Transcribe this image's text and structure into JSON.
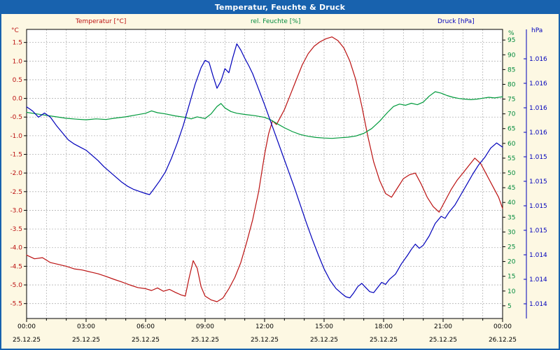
{
  "window": {
    "title": "Temperatur, Feuchte & Druck"
  },
  "legend": {
    "temperature": "Temperatur [°C]",
    "humidity": "rel. Feuchte [%]",
    "pressure": "Druck [hPa]"
  },
  "units": {
    "left": "°C",
    "humidity": "%",
    "pressure": "hPa"
  },
  "colors": {
    "background": "#fdf8e3",
    "titlebar": "#1862ae",
    "plot_background": "#ffffff",
    "grid": "#b4b4b4",
    "temperature": "#bb1111",
    "humidity": "#009a3c",
    "pressure": "#0000bb"
  },
  "chart_data": {
    "type": "line",
    "title": "Temperatur, Feuchte & Druck",
    "grid": true,
    "x_axis": {
      "unit": "time",
      "range_hours": [
        0,
        24
      ],
      "major_tick_hours": 3,
      "minor_tick_hours": 1,
      "tick_labels": [
        {
          "time": "00:00",
          "date": "25.12.25"
        },
        {
          "time": "03:00",
          "date": "25.12.25"
        },
        {
          "time": "06:00",
          "date": "25.12.25"
        },
        {
          "time": "09:00",
          "date": "25.12.25"
        },
        {
          "time": "12:00",
          "date": "25.12.25"
        },
        {
          "time": "15:00",
          "date": "25.12.25"
        },
        {
          "time": "18:00",
          "date": "25.12.25"
        },
        {
          "time": "21:00",
          "date": "25.12.25"
        },
        {
          "time": "00:00",
          "date": "26.12.25"
        }
      ]
    },
    "temp_axis": {
      "unit": "°C",
      "color": "#bb1111",
      "min": -5.9,
      "max": 1.85,
      "tick_values": [
        1.5,
        1.0,
        0.5,
        0.0,
        -0.5,
        -1.0,
        -1.5,
        -2.0,
        -2.5,
        -3.0,
        -3.5,
        -4.0,
        -4.5,
        -5.0,
        -5.5
      ]
    },
    "humidity_axis": {
      "unit": "%",
      "color": "#008a3c",
      "min": 0.7,
      "max": 98.6,
      "tick_values": [
        95,
        90,
        85,
        80,
        75,
        70,
        65,
        60,
        55,
        50,
        45,
        40,
        35,
        30,
        25,
        20,
        15,
        10,
        5
      ]
    },
    "pressure_axis": {
      "unit": "hPa",
      "color": "#0000bb",
      "min": 1013.75,
      "max": 1016.55,
      "labels": [
        "1.016",
        "1.016",
        "1.016",
        "1.016",
        "1.015",
        "1.015",
        "1.015",
        "1.015",
        "1.014",
        "1.014",
        "1.014"
      ]
    },
    "series": [
      {
        "name": "Temperatur [°C]",
        "axis": "temp",
        "color": "#bb1111",
        "points": [
          [
            0,
            -4.2
          ],
          [
            0.4,
            -4.3
          ],
          [
            0.8,
            -4.27
          ],
          [
            1.2,
            -4.4
          ],
          [
            1.6,
            -4.45
          ],
          [
            2,
            -4.5
          ],
          [
            2.4,
            -4.57
          ],
          [
            2.8,
            -4.6
          ],
          [
            3.2,
            -4.65
          ],
          [
            3.6,
            -4.7
          ],
          [
            4,
            -4.77
          ],
          [
            4.4,
            -4.85
          ],
          [
            4.8,
            -4.92
          ],
          [
            5.2,
            -5.0
          ],
          [
            5.6,
            -5.07
          ],
          [
            6,
            -5.1
          ],
          [
            6.3,
            -5.15
          ],
          [
            6.6,
            -5.08
          ],
          [
            6.9,
            -5.17
          ],
          [
            7.2,
            -5.12
          ],
          [
            7.5,
            -5.2
          ],
          [
            7.8,
            -5.27
          ],
          [
            8,
            -5.3
          ],
          [
            8.2,
            -4.8
          ],
          [
            8.4,
            -4.35
          ],
          [
            8.6,
            -4.55
          ],
          [
            8.8,
            -5.05
          ],
          [
            9,
            -5.3
          ],
          [
            9.3,
            -5.4
          ],
          [
            9.6,
            -5.45
          ],
          [
            9.9,
            -5.35
          ],
          [
            10.2,
            -5.1
          ],
          [
            10.5,
            -4.8
          ],
          [
            10.8,
            -4.4
          ],
          [
            11.1,
            -3.85
          ],
          [
            11.4,
            -3.25
          ],
          [
            11.7,
            -2.5
          ],
          [
            12,
            -1.5
          ],
          [
            12.2,
            -0.95
          ],
          [
            12.4,
            -0.6
          ],
          [
            12.6,
            -0.7
          ],
          [
            12.8,
            -0.5
          ],
          [
            13,
            -0.3
          ],
          [
            13.3,
            0.1
          ],
          [
            13.6,
            0.5
          ],
          [
            13.9,
            0.9
          ],
          [
            14.2,
            1.2
          ],
          [
            14.5,
            1.4
          ],
          [
            14.8,
            1.52
          ],
          [
            15.1,
            1.6
          ],
          [
            15.4,
            1.65
          ],
          [
            15.7,
            1.55
          ],
          [
            16,
            1.35
          ],
          [
            16.3,
            1.0
          ],
          [
            16.6,
            0.5
          ],
          [
            16.9,
            -0.2
          ],
          [
            17.2,
            -1.0
          ],
          [
            17.5,
            -1.7
          ],
          [
            17.8,
            -2.2
          ],
          [
            18.1,
            -2.55
          ],
          [
            18.4,
            -2.65
          ],
          [
            18.7,
            -2.4
          ],
          [
            19,
            -2.15
          ],
          [
            19.3,
            -2.05
          ],
          [
            19.6,
            -2.0
          ],
          [
            19.9,
            -2.3
          ],
          [
            20.2,
            -2.65
          ],
          [
            20.5,
            -2.9
          ],
          [
            20.8,
            -3.05
          ],
          [
            21.1,
            -2.75
          ],
          [
            21.4,
            -2.45
          ],
          [
            21.7,
            -2.2
          ],
          [
            22,
            -2.0
          ],
          [
            22.3,
            -1.8
          ],
          [
            22.6,
            -1.6
          ],
          [
            22.9,
            -1.75
          ],
          [
            23.2,
            -2.05
          ],
          [
            23.5,
            -2.35
          ],
          [
            23.8,
            -2.65
          ],
          [
            24,
            -2.95
          ]
        ]
      },
      {
        "name": "rel. Feuchte [%]",
        "axis": "humidity",
        "color": "#009a3c",
        "points": [
          [
            0,
            70.5
          ],
          [
            0.5,
            70
          ],
          [
            1,
            69.5
          ],
          [
            1.5,
            69
          ],
          [
            2,
            68.5
          ],
          [
            2.5,
            68.2
          ],
          [
            3,
            68
          ],
          [
            3.5,
            68.3
          ],
          [
            4,
            68.1
          ],
          [
            4.5,
            68.6
          ],
          [
            5,
            69
          ],
          [
            5.5,
            69.6
          ],
          [
            6,
            70.2
          ],
          [
            6.3,
            71
          ],
          [
            6.6,
            70.4
          ],
          [
            7,
            70
          ],
          [
            7.5,
            69.3
          ],
          [
            8,
            68.8
          ],
          [
            8.3,
            68.3
          ],
          [
            8.6,
            69
          ],
          [
            9,
            68.4
          ],
          [
            9.3,
            70
          ],
          [
            9.6,
            72.5
          ],
          [
            9.8,
            73.5
          ],
          [
            10,
            72
          ],
          [
            10.3,
            70.8
          ],
          [
            10.6,
            70.2
          ],
          [
            11,
            69.8
          ],
          [
            11.5,
            69.4
          ],
          [
            12,
            68.8
          ],
          [
            12.3,
            68
          ],
          [
            12.6,
            66.8
          ],
          [
            13,
            65.3
          ],
          [
            13.4,
            64
          ],
          [
            13.8,
            63
          ],
          [
            14.2,
            62.4
          ],
          [
            14.6,
            62
          ],
          [
            15,
            61.8
          ],
          [
            15.4,
            61.7
          ],
          [
            15.8,
            61.9
          ],
          [
            16.2,
            62.1
          ],
          [
            16.6,
            62.5
          ],
          [
            17,
            63.4
          ],
          [
            17.4,
            65
          ],
          [
            17.8,
            67.5
          ],
          [
            18.2,
            70.5
          ],
          [
            18.5,
            72.5
          ],
          [
            18.8,
            73.3
          ],
          [
            19.1,
            72.9
          ],
          [
            19.4,
            73.6
          ],
          [
            19.7,
            73.1
          ],
          [
            20,
            74
          ],
          [
            20.3,
            76
          ],
          [
            20.6,
            77.5
          ],
          [
            20.9,
            77
          ],
          [
            21.2,
            76.2
          ],
          [
            21.5,
            75.6
          ],
          [
            21.8,
            75.2
          ],
          [
            22.1,
            75
          ],
          [
            22.4,
            74.8
          ],
          [
            22.7,
            75
          ],
          [
            23,
            75.3
          ],
          [
            23.3,
            75.6
          ],
          [
            23.6,
            75.4
          ],
          [
            24,
            75.8
          ]
        ]
      },
      {
        "name": "Druck [hPa]",
        "axis": "pressure",
        "color": "#0000bb",
        "points": [
          [
            0,
            1015.8
          ],
          [
            0.3,
            1015.76
          ],
          [
            0.6,
            1015.7
          ],
          [
            0.9,
            1015.74
          ],
          [
            1.2,
            1015.7
          ],
          [
            1.5,
            1015.62
          ],
          [
            1.8,
            1015.55
          ],
          [
            2.1,
            1015.48
          ],
          [
            2.4,
            1015.44
          ],
          [
            2.7,
            1015.41
          ],
          [
            3,
            1015.38
          ],
          [
            3.3,
            1015.33
          ],
          [
            3.6,
            1015.28
          ],
          [
            3.9,
            1015.22
          ],
          [
            4.2,
            1015.17
          ],
          [
            4.5,
            1015.12
          ],
          [
            4.8,
            1015.07
          ],
          [
            5.1,
            1015.03
          ],
          [
            5.4,
            1015.0
          ],
          [
            5.7,
            1014.98
          ],
          [
            6,
            1014.96
          ],
          [
            6.2,
            1014.95
          ],
          [
            6.4,
            1015.0
          ],
          [
            6.7,
            1015.08
          ],
          [
            7,
            1015.17
          ],
          [
            7.3,
            1015.3
          ],
          [
            7.6,
            1015.45
          ],
          [
            7.9,
            1015.62
          ],
          [
            8.2,
            1015.82
          ],
          [
            8.5,
            1016.02
          ],
          [
            8.8,
            1016.18
          ],
          [
            9,
            1016.25
          ],
          [
            9.2,
            1016.23
          ],
          [
            9.4,
            1016.1
          ],
          [
            9.6,
            1015.98
          ],
          [
            9.8,
            1016.05
          ],
          [
            10,
            1016.17
          ],
          [
            10.2,
            1016.13
          ],
          [
            10.4,
            1016.28
          ],
          [
            10.6,
            1016.41
          ],
          [
            10.8,
            1016.35
          ],
          [
            11,
            1016.27
          ],
          [
            11.2,
            1016.2
          ],
          [
            11.4,
            1016.12
          ],
          [
            11.6,
            1016.02
          ],
          [
            11.8,
            1015.92
          ],
          [
            12,
            1015.82
          ],
          [
            12.3,
            1015.66
          ],
          [
            12.6,
            1015.5
          ],
          [
            12.9,
            1015.34
          ],
          [
            13.2,
            1015.18
          ],
          [
            13.5,
            1015.02
          ],
          [
            13.8,
            1014.85
          ],
          [
            14.1,
            1014.68
          ],
          [
            14.4,
            1014.52
          ],
          [
            14.7,
            1014.37
          ],
          [
            15,
            1014.23
          ],
          [
            15.3,
            1014.12
          ],
          [
            15.6,
            1014.04
          ],
          [
            15.9,
            1013.99
          ],
          [
            16.1,
            1013.96
          ],
          [
            16.3,
            1013.95
          ],
          [
            16.5,
            1014.0
          ],
          [
            16.7,
            1014.06
          ],
          [
            16.9,
            1014.09
          ],
          [
            17.1,
            1014.05
          ],
          [
            17.3,
            1014.01
          ],
          [
            17.5,
            1014.0
          ],
          [
            17.7,
            1014.05
          ],
          [
            17.9,
            1014.1
          ],
          [
            18.1,
            1014.08
          ],
          [
            18.3,
            1014.13
          ],
          [
            18.6,
            1014.18
          ],
          [
            18.9,
            1014.28
          ],
          [
            19.2,
            1014.36
          ],
          [
            19.4,
            1014.42
          ],
          [
            19.6,
            1014.47
          ],
          [
            19.8,
            1014.43
          ],
          [
            20,
            1014.46
          ],
          [
            20.3,
            1014.55
          ],
          [
            20.6,
            1014.67
          ],
          [
            20.9,
            1014.74
          ],
          [
            21.1,
            1014.72
          ],
          [
            21.3,
            1014.78
          ],
          [
            21.6,
            1014.85
          ],
          [
            21.9,
            1014.95
          ],
          [
            22.2,
            1015.05
          ],
          [
            22.5,
            1015.15
          ],
          [
            22.8,
            1015.24
          ],
          [
            23.1,
            1015.31
          ],
          [
            23.4,
            1015.4
          ],
          [
            23.7,
            1015.45
          ],
          [
            24,
            1015.41
          ]
        ]
      }
    ]
  }
}
